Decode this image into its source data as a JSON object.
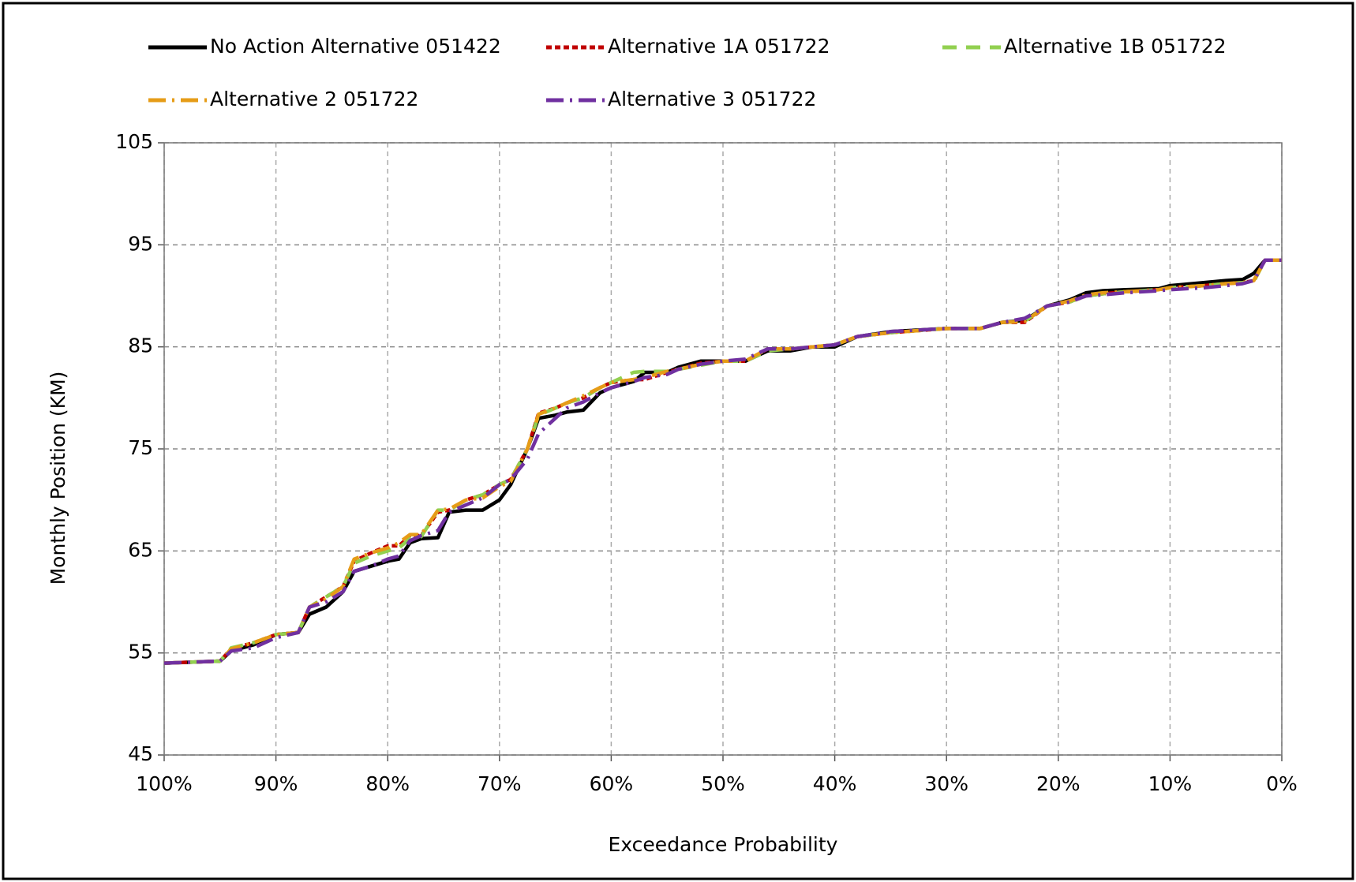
{
  "chart_data": {
    "type": "line",
    "x_label": "Exceedance Probability",
    "y_label": "Monthly Position (KM)",
    "x": [
      100,
      95,
      94,
      92,
      90,
      88,
      87,
      85.5,
      84,
      83,
      81.5,
      80,
      79,
      78,
      77,
      75.5,
      74.5,
      73,
      71.5,
      70,
      69,
      67.5,
      66.5,
      65,
      64,
      62.5,
      61,
      60,
      58,
      57,
      55,
      54,
      52,
      50,
      48,
      46,
      44,
      42,
      40,
      38,
      35,
      30,
      27,
      25,
      23,
      21,
      19,
      17.5,
      16,
      14,
      11,
      10,
      7,
      5,
      3.5,
      2.5,
      1.5,
      0
    ],
    "series": [
      {
        "name": "No Action Alternative 051422",
        "color": "#000000",
        "dash": "solid",
        "values": [
          54,
          54.2,
          55.2,
          55.8,
          56.8,
          57,
          58.8,
          59.5,
          61,
          63,
          63.5,
          64,
          64.2,
          65.8,
          66.2,
          66.3,
          68.8,
          69,
          69,
          70,
          71.5,
          75,
          78,
          78.3,
          78.6,
          78.8,
          80.5,
          81,
          81.6,
          82.5,
          82.5,
          83,
          83.6,
          83.6,
          83.6,
          84.6,
          84.6,
          85,
          85,
          86,
          86.5,
          86.8,
          86.8,
          87.4,
          87.6,
          89,
          89.6,
          90.3,
          90.5,
          90.6,
          90.7,
          91,
          91.3,
          91.5,
          91.6,
          92.2,
          93.5,
          93.5
        ]
      },
      {
        "name": "Alternative 1A 051722",
        "color": "#c00000",
        "dash": "dotted",
        "values": [
          54,
          54.2,
          55.4,
          56,
          56.8,
          57,
          59.5,
          60.5,
          61.5,
          64,
          64.8,
          65.5,
          65.5,
          66.5,
          66.5,
          68.8,
          69,
          70,
          70.5,
          71.5,
          72,
          75,
          78.5,
          79,
          79.5,
          80,
          81,
          81.5,
          81.8,
          81.8,
          82.5,
          82.8,
          83.4,
          83.6,
          83.6,
          84.8,
          84.8,
          85,
          85.2,
          86,
          86.4,
          86.8,
          86.8,
          87.4,
          87.4,
          89,
          89.4,
          90,
          90.2,
          90.4,
          90.6,
          90.8,
          91,
          91.2,
          91.3,
          91.5,
          93.5,
          93.5
        ]
      },
      {
        "name": "Alternative 1B 051722",
        "color": "#92d050",
        "dash": "dashed",
        "values": [
          54,
          54.2,
          55.5,
          56,
          56.8,
          57,
          59.5,
          60.5,
          61.5,
          63.8,
          64.5,
          65,
          65.3,
          66.2,
          66.4,
          69,
          69,
          70,
          70.5,
          71.5,
          72,
          75,
          78.3,
          79,
          79.5,
          80,
          81,
          81.5,
          82.5,
          82.6,
          82.6,
          82.8,
          83.2,
          83.6,
          83.6,
          84.6,
          84.8,
          85,
          85.2,
          86,
          86.4,
          86.8,
          86.8,
          87.4,
          87.5,
          89,
          89.4,
          90,
          90.2,
          90.4,
          90.6,
          90.8,
          91,
          91.2,
          91.3,
          91.4,
          93.5,
          93.5
        ]
      },
      {
        "name": "Alternative 2 051722",
        "color": "#e69c17",
        "dash": "dash-dot",
        "values": [
          54,
          54.2,
          55.4,
          56,
          56.8,
          57,
          59.5,
          60.3,
          61.5,
          64.2,
          64.8,
          65.3,
          65.8,
          66.6,
          66.6,
          69,
          69.1,
          70,
          70.2,
          71.3,
          71.8,
          75,
          78.4,
          79,
          79.5,
          80.2,
          81,
          81.5,
          81.8,
          82,
          82.6,
          82.8,
          83.3,
          83.6,
          83.6,
          84.8,
          84.8,
          85,
          85.2,
          86,
          86.4,
          86.8,
          86.8,
          87.4,
          87.5,
          89,
          89.5,
          90.1,
          90.3,
          90.4,
          90.6,
          90.8,
          91,
          91.2,
          91.3,
          91.5,
          93.5,
          93.5
        ]
      },
      {
        "name": "Alternative 3 051722",
        "color": "#7030a0",
        "dash": "dash-dot",
        "values": [
          54,
          54.2,
          55.2,
          55.5,
          56.5,
          57,
          59.5,
          60,
          61,
          63,
          63.5,
          64.2,
          64.5,
          66,
          66.5,
          67,
          68.8,
          69.5,
          70.2,
          71.5,
          72,
          74,
          76.5,
          78,
          79,
          79.6,
          80.5,
          81,
          81.6,
          82,
          82.3,
          82.8,
          83.3,
          83.6,
          83.8,
          84.8,
          84.8,
          85,
          85.2,
          86,
          86.5,
          86.8,
          86.8,
          87.4,
          87.8,
          89,
          89.4,
          90,
          90.1,
          90.3,
          90.5,
          90.6,
          90.8,
          91,
          91.2,
          91.5,
          93.5,
          93.5
        ]
      }
    ],
    "xlim": [
      100,
      0
    ],
    "xticks": [
      {
        "value": 100,
        "label": "100%"
      },
      {
        "value": 90,
        "label": "90%"
      },
      {
        "value": 80,
        "label": "80%"
      },
      {
        "value": 70,
        "label": "70%"
      },
      {
        "value": 60,
        "label": "60%"
      },
      {
        "value": 50,
        "label": "50%"
      },
      {
        "value": 40,
        "label": "40%"
      },
      {
        "value": 30,
        "label": "30%"
      },
      {
        "value": 20,
        "label": "20%"
      },
      {
        "value": 10,
        "label": "10%"
      },
      {
        "value": 0,
        "label": "0%"
      }
    ],
    "ylim": [
      45,
      105
    ],
    "yticks": [
      45,
      55,
      65,
      75,
      85,
      95,
      105
    ],
    "grid": true,
    "legend": "top"
  }
}
